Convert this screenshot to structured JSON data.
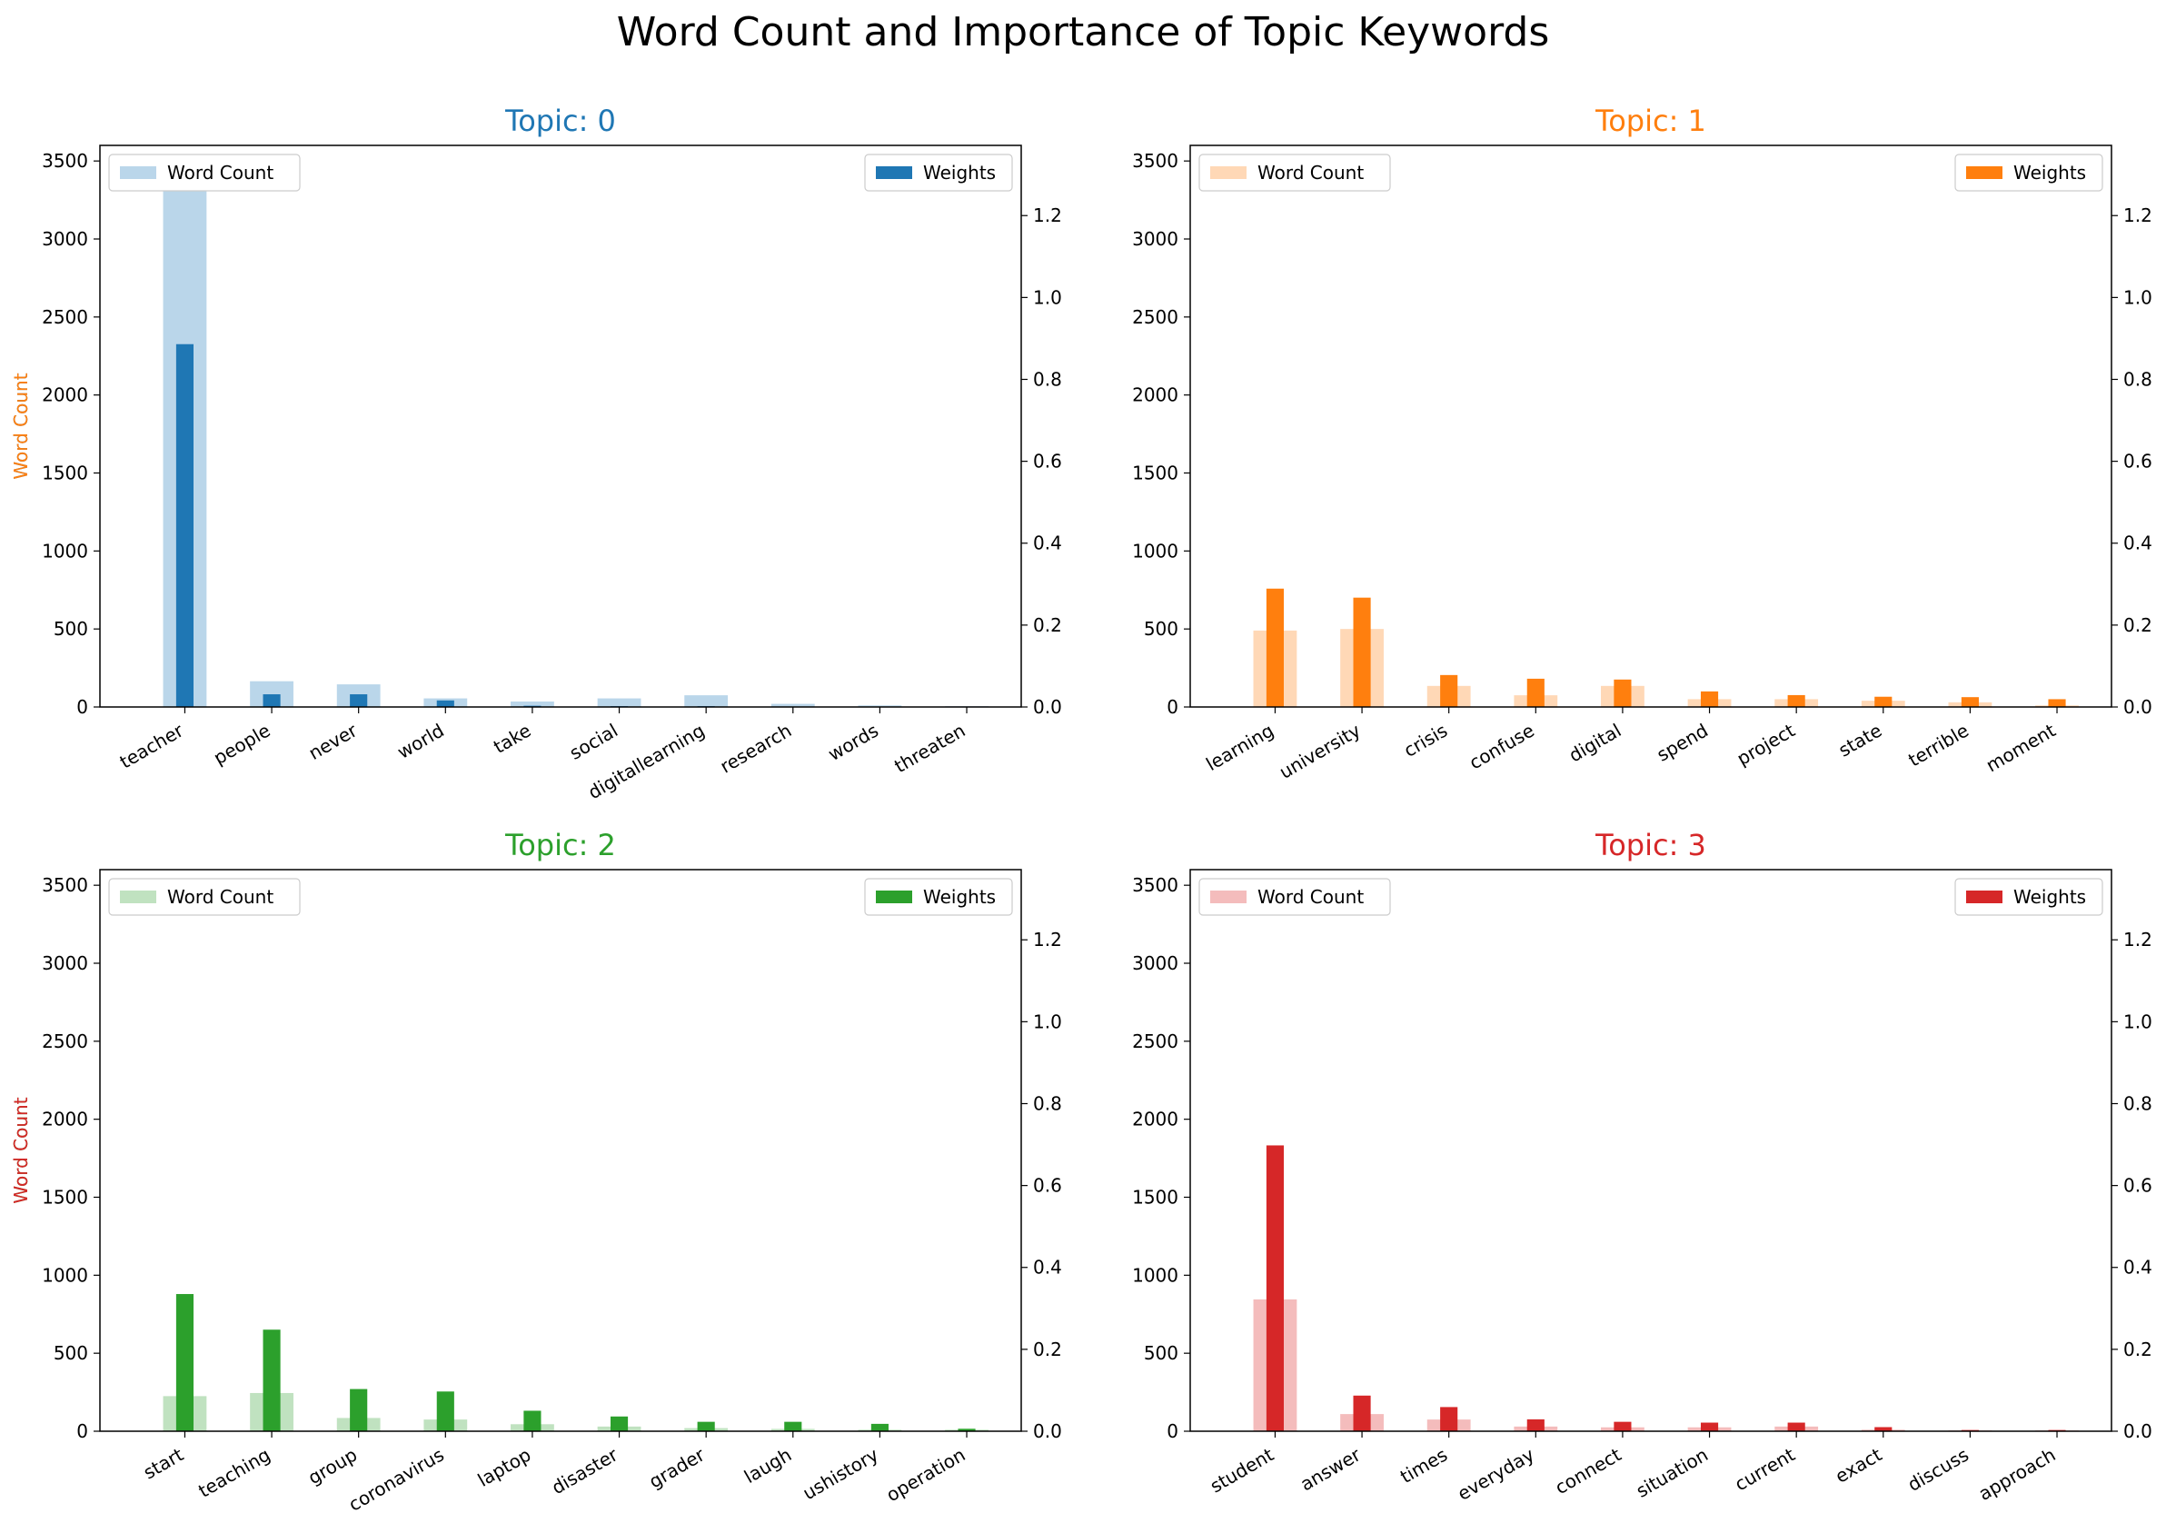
{
  "suptitle": "Word Count and Importance of Topic Keywords",
  "chart_data": [
    {
      "type": "bar",
      "title": "Topic: 0",
      "color": "#1f77b4",
      "light_color": "#bad6ea",
      "ylabel": "Word Count",
      "ylim": [
        0,
        3600
      ],
      "ylim_right": [
        0,
        1.3714
      ],
      "yticks": [
        0,
        500,
        1000,
        1500,
        2000,
        2500,
        3000,
        3500
      ],
      "yticks_right": [
        0.0,
        0.2,
        0.4,
        0.6,
        0.8,
        1.0,
        1.2
      ],
      "legend_left": "Word Count",
      "legend_right": "Weights",
      "categories": [
        "teacher",
        "people",
        "never",
        "world",
        "take",
        "social",
        "digitallearning",
        "research",
        "words",
        "threaten"
      ],
      "series": [
        {
          "name": "Word Count",
          "axis": "left",
          "values": [
            3400,
            165,
            145,
            55,
            35,
            55,
            75,
            20,
            10,
            5
          ]
        },
        {
          "name": "Weights",
          "axis": "right",
          "values": [
            0.886,
            0.031,
            0.031,
            0.016,
            0.003,
            0.002,
            0.002,
            0.001,
            0.001,
            0.001
          ]
        }
      ]
    },
    {
      "type": "bar",
      "title": "Topic: 1",
      "color": "#ff7f0e",
      "light_color": "#ffd8b6",
      "ylabel": "Word Count",
      "ylim": [
        0,
        3600
      ],
      "ylim_right": [
        0,
        1.3714
      ],
      "yticks": [
        0,
        500,
        1000,
        1500,
        2000,
        2500,
        3000,
        3500
      ],
      "yticks_right": [
        0.0,
        0.2,
        0.4,
        0.6,
        0.8,
        1.0,
        1.2
      ],
      "legend_left": "Word Count",
      "legend_right": "Weights",
      "categories": [
        "learning",
        "university",
        "crisis",
        "confuse",
        "digital",
        "spend",
        "project",
        "state",
        "terrible",
        "moment"
      ],
      "series": [
        {
          "name": "Word Count",
          "axis": "left",
          "values": [
            490,
            500,
            135,
            75,
            135,
            50,
            50,
            40,
            30,
            10
          ]
        },
        {
          "name": "Weights",
          "axis": "right",
          "values": [
            0.289,
            0.267,
            0.078,
            0.069,
            0.067,
            0.038,
            0.029,
            0.025,
            0.024,
            0.019
          ]
        }
      ]
    },
    {
      "type": "bar",
      "title": "Topic: 2",
      "color": "#2ca02c",
      "light_color": "#c0e2c0",
      "ylabel": "Word Count",
      "ylim": [
        0,
        3600
      ],
      "ylim_right": [
        0,
        1.3714
      ],
      "yticks": [
        0,
        500,
        1000,
        1500,
        2000,
        2500,
        3000,
        3500
      ],
      "yticks_right": [
        0.0,
        0.2,
        0.4,
        0.6,
        0.8,
        1.0,
        1.2
      ],
      "legend_left": "Word Count",
      "legend_right": "Weights",
      "categories": [
        "start",
        "teaching",
        "group",
        "coronavirus",
        "laptop",
        "disaster",
        "grader",
        "laugh",
        "ushistory",
        "operation"
      ],
      "series": [
        {
          "name": "Word Count",
          "axis": "left",
          "values": [
            225,
            245,
            85,
            75,
            45,
            30,
            20,
            15,
            10,
            10
          ]
        },
        {
          "name": "Weights",
          "axis": "right",
          "values": [
            0.335,
            0.248,
            0.103,
            0.097,
            0.05,
            0.036,
            0.023,
            0.023,
            0.018,
            0.006
          ]
        }
      ]
    },
    {
      "type": "bar",
      "title": "Topic: 3",
      "color": "#d62728",
      "light_color": "#f4bcbc",
      "ylabel": "Word Count",
      "ylim": [
        0,
        3600
      ],
      "ylim_right": [
        0,
        1.3714
      ],
      "yticks": [
        0,
        500,
        1000,
        1500,
        2000,
        2500,
        3000,
        3500
      ],
      "yticks_right": [
        0.0,
        0.2,
        0.4,
        0.6,
        0.8,
        1.0,
        1.2
      ],
      "legend_left": "Word Count",
      "legend_right": "Weights",
      "categories": [
        "student",
        "answer",
        "times",
        "everyday",
        "connect",
        "situation",
        "current",
        "exact",
        "discuss",
        "approach"
      ],
      "series": [
        {
          "name": "Word Count",
          "axis": "left",
          "values": [
            845,
            110,
            75,
            30,
            25,
            25,
            30,
            10,
            5,
            5
          ]
        },
        {
          "name": "Weights",
          "axis": "right",
          "values": [
            0.698,
            0.087,
            0.059,
            0.029,
            0.023,
            0.021,
            0.021,
            0.01,
            0.003,
            0.003
          ]
        }
      ]
    }
  ]
}
